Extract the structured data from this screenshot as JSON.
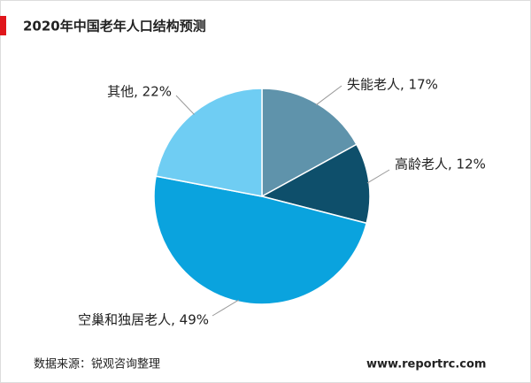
{
  "chart_data": {
    "type": "pie",
    "title": "2020年中国老年人口结构预测",
    "values": [
      17,
      12,
      49,
      22
    ],
    "value_labels": [
      "失能老人, 17%",
      "高龄老人, 12%",
      "空巢和独居老人, 49%",
      "其他, 22%"
    ],
    "colors": [
      "#5f93ab",
      "#0e4f6b",
      "#0aa3de",
      "#6fcdf3"
    ],
    "source": "数据来源：锐观咨询整理",
    "website": "www.reportrc.com"
  }
}
